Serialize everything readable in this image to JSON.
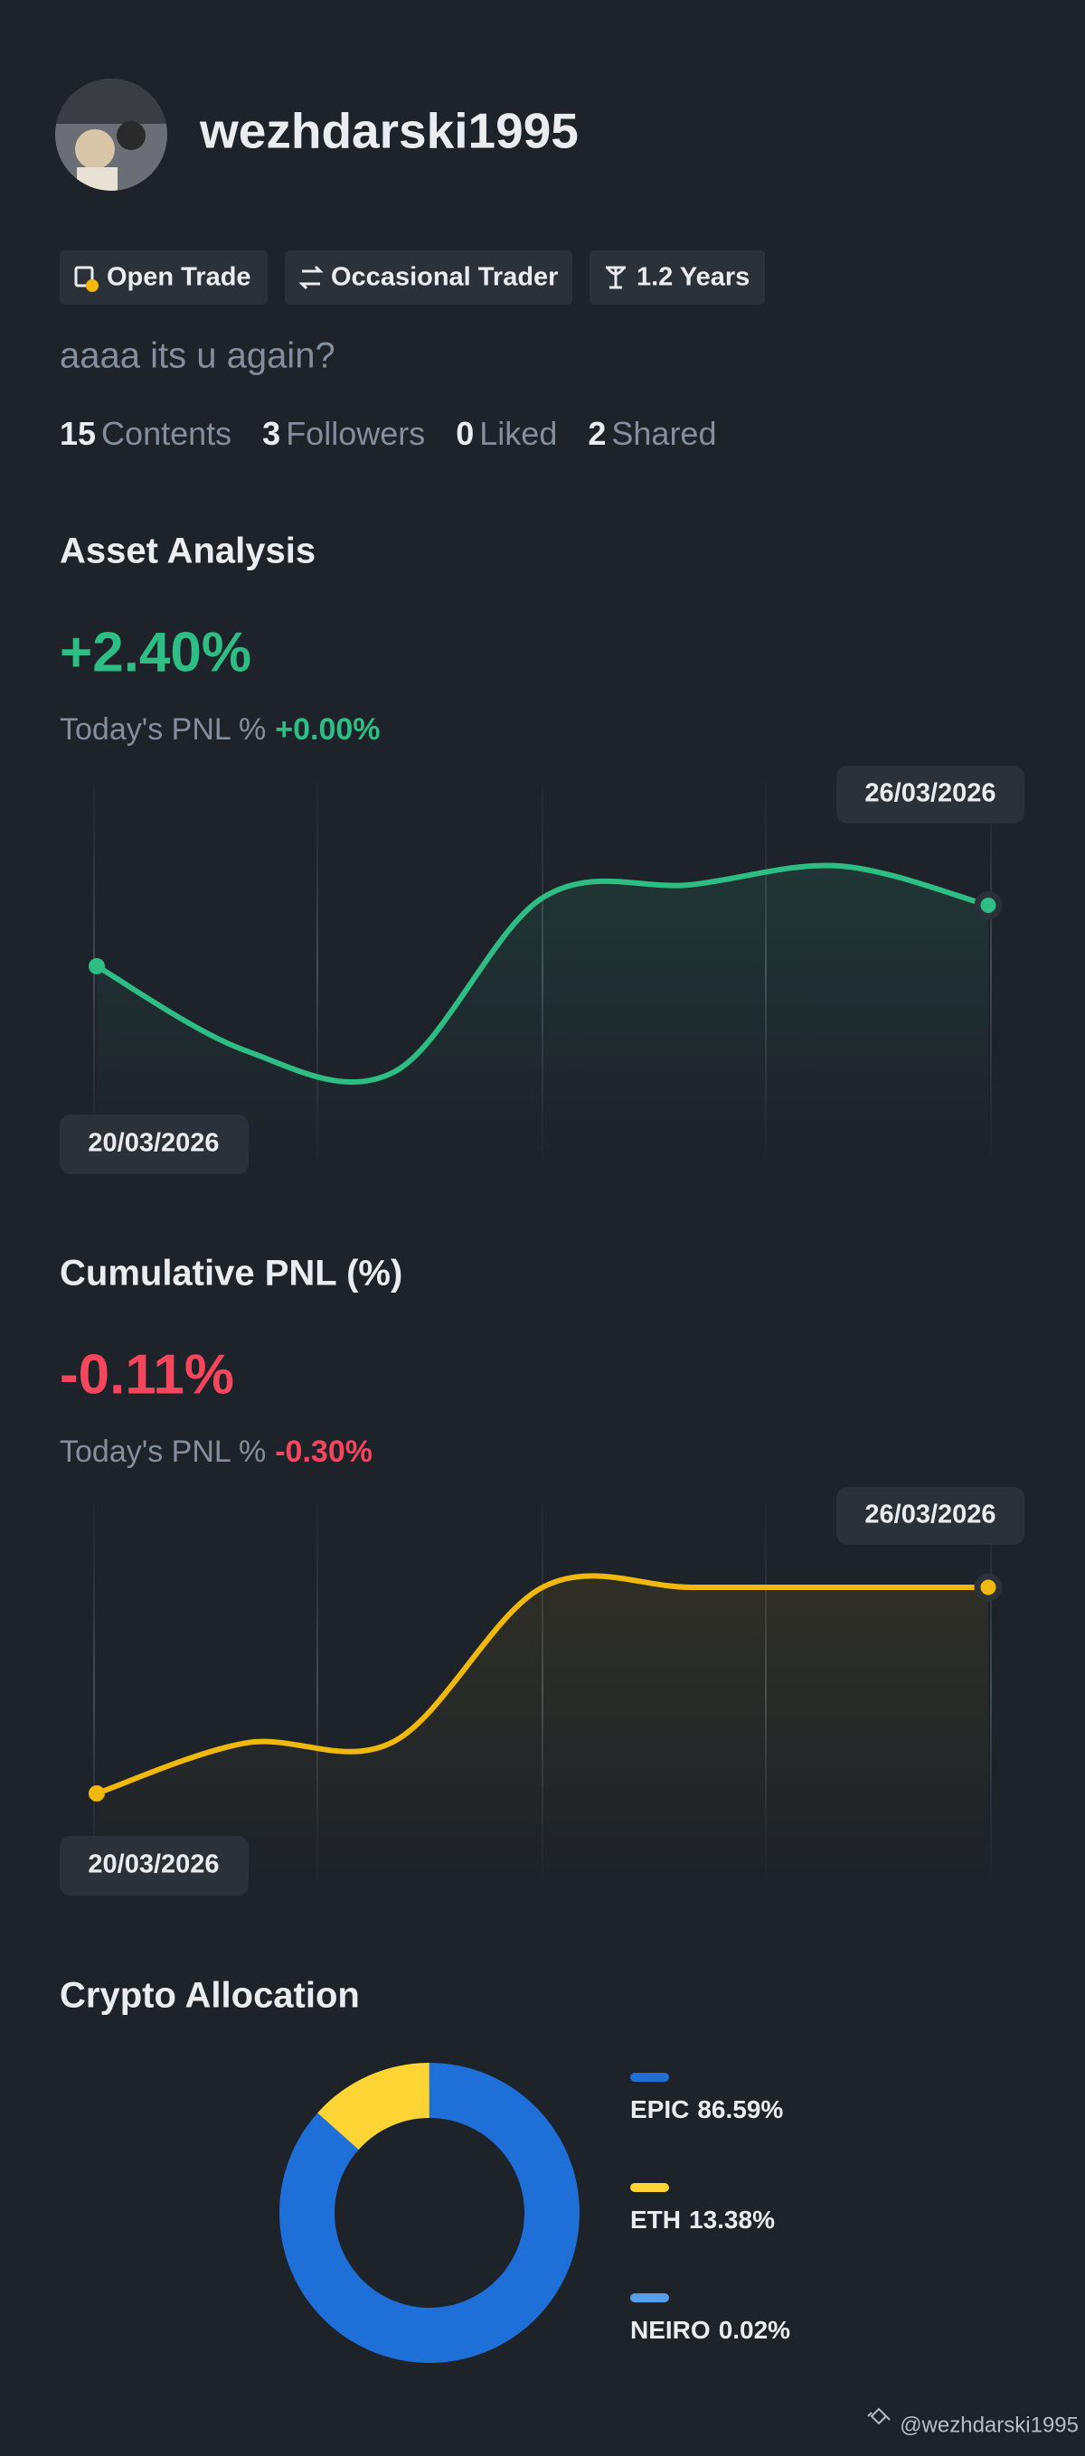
{
  "profile": {
    "username": "wezhdarski1995",
    "tags": [
      "Open Trade",
      "Occasional Trader",
      "1.2 Years"
    ],
    "bio": "aaaa its u again?",
    "stats": [
      {
        "value": 15,
        "label": "Contents"
      },
      {
        "value": 3,
        "label": "Followers"
      },
      {
        "value": 0,
        "label": "Liked"
      },
      {
        "value": 2,
        "label": "Shared"
      }
    ],
    "watermark": "@wezhdarski1995"
  },
  "chart_data": [
    {
      "type": "line",
      "title": "Asset Analysis",
      "headline": "+2.40%",
      "today_label": "Today's PNL %",
      "today_value": "+0.00%",
      "x": [
        "20/03/2026",
        null,
        null,
        null,
        null,
        null,
        "26/03/2026"
      ],
      "series": [
        {
          "color": "#2ebd85",
          "values": [
            1.75,
            0.85,
            0.62,
            2.48,
            2.62,
            2.82,
            2.4
          ]
        }
      ]
    },
    {
      "type": "line",
      "title": "Cumulative PNL (%)",
      "headline": "-0.11%",
      "today_label": "Today's PNL %",
      "today_value": "-0.30%",
      "x": [
        "20/03/2026",
        null,
        null,
        null,
        null,
        null,
        "26/03/2026"
      ],
      "series": [
        {
          "color": "#f0b90b",
          "values": [
            -1.42,
            -1.1,
            -1.09,
            -0.11,
            -0.11,
            -0.11,
            -0.11
          ]
        }
      ]
    },
    {
      "type": "pie",
      "title": "Crypto Allocation",
      "categories": [
        "EPIC",
        "ETH",
        "NEIRO"
      ],
      "values": [
        86.59,
        13.38,
        0.02
      ],
      "value_labels": [
        "86.59%",
        "13.38%",
        "0.02%"
      ],
      "colors": [
        "#1f6fd8",
        "#fcd535",
        "#5a9ee8"
      ]
    }
  ]
}
